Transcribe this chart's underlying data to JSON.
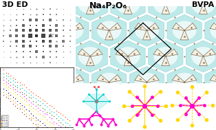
{
  "title": "Na₄P₂O₆",
  "label_3DED": "3D ED",
  "label_BVPA": "BVPA",
  "bg_color": "#ffffff",
  "title_fontsize": 9,
  "label_fontsize": 8,
  "conductivity_xlabel": "1000/T (K⁻¹)",
  "conductivity_ylabel": "σ_ion (S/m)",
  "freq_labels": [
    "100 Hz",
    "201 Hz",
    "382 Hz",
    "562 Hz",
    "802 Hz",
    "1.0 kHz",
    "2.0 kHz",
    "4.0 kHz",
    "8.0 kHz"
  ],
  "freq_colors": [
    "#FF4500",
    "#00CED1",
    "#228B22",
    "#FF00FF",
    "#DAA520",
    "#FFFF00",
    "#000080",
    "#FF8C00",
    "#8B4513"
  ],
  "mol_pink": "#FF00CC",
  "mol_cyan": "#00CCCC",
  "mol_yellow": "#FFD700",
  "mol_red": "#FF4444",
  "mol_gray": "#888888",
  "crystal_teal": "#88d8d8",
  "crystal_white": "#f5f0e0",
  "crystal_brown": "#8B7355",
  "crystal_darkbrown": "#5a3a1a"
}
